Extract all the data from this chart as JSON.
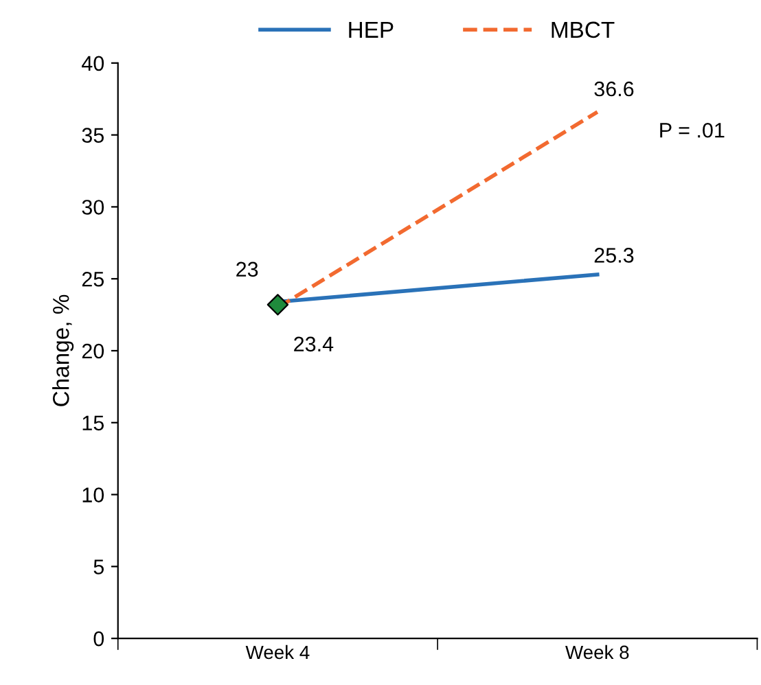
{
  "chart_data": {
    "type": "line",
    "ylabel": "Change, %",
    "categories": [
      "Week 4",
      "Week 8"
    ],
    "series": [
      {
        "name": "HEP",
        "color": "#2a72b8",
        "line_style": "solid",
        "values": [
          23.4,
          25.3
        ],
        "value_labels": [
          "23.4",
          "25.3"
        ]
      },
      {
        "name": "MBCT",
        "color": "#f26a30",
        "line_style": "dashed",
        "values": [
          23,
          36.6
        ],
        "value_labels": [
          "23",
          "36.6"
        ]
      },
      {
        "type": "scatter",
        "color": "#1f8a3c",
        "marker": "diamond",
        "values": [
          23.2,
          null
        ]
      }
    ],
    "ylim": [
      0,
      40
    ],
    "yticks": [
      0,
      5,
      10,
      15,
      20,
      25,
      30,
      35,
      40
    ],
    "annotations": [
      "P = .01"
    ],
    "legend": "top",
    "grid": false
  }
}
